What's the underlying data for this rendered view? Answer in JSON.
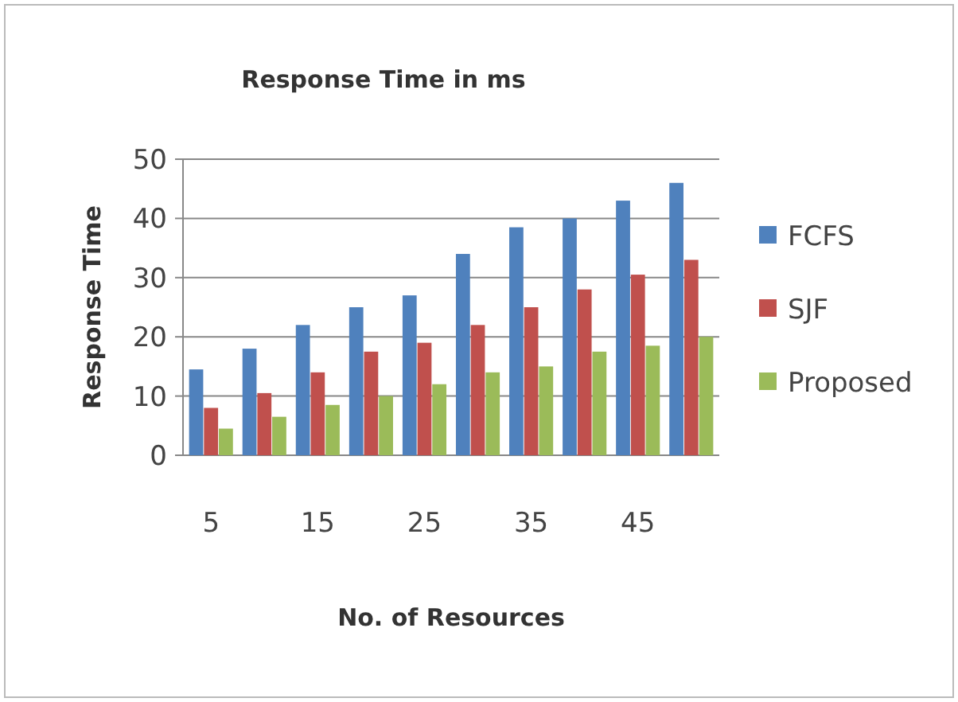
{
  "chart_data": {
    "type": "bar",
    "title": "Response Time in ms",
    "xlabel": "No. of Resources",
    "ylabel": "Response Time",
    "categories": [
      "5",
      null,
      "15",
      null,
      "25",
      null,
      "35",
      null,
      "45",
      null
    ],
    "series": [
      {
        "name": "FCFS",
        "color": "#4f81bd",
        "values": [
          14.5,
          18,
          22,
          25,
          27,
          34,
          38.5,
          40,
          43,
          46
        ]
      },
      {
        "name": "SJF",
        "color": "#c0504d",
        "values": [
          8,
          10.5,
          14,
          17.5,
          19,
          22,
          25,
          28,
          30.5,
          33
        ]
      },
      {
        "name": "Proposed",
        "color": "#9bbb59",
        "values": [
          4.5,
          6.5,
          8.5,
          10,
          12,
          14,
          15,
          17.5,
          18.5,
          20
        ]
      }
    ],
    "ylim": [
      0,
      50
    ],
    "yticks": [
      0,
      10,
      20,
      30,
      40,
      50
    ],
    "grid": "y",
    "legend": "right"
  }
}
